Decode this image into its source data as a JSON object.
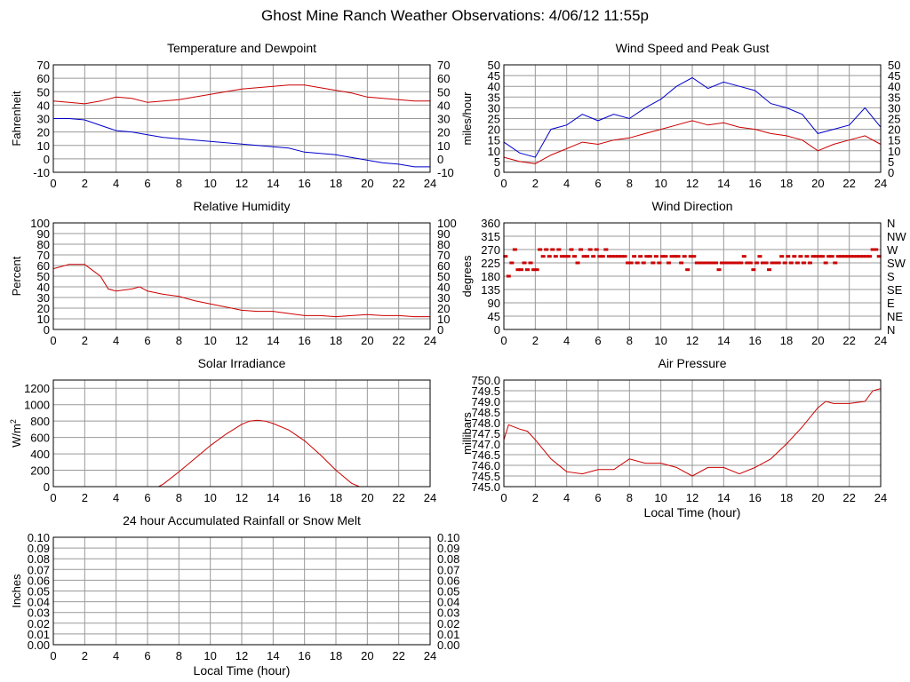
{
  "page_title": "Ghost Mine Ranch Weather Observations: 4/06/12 11:55p",
  "colors": {
    "temperature": "#cc0000",
    "dewpoint": "#0000cc",
    "grid": "#999999",
    "frame": "#000000"
  },
  "chart_data": [
    {
      "id": "temp",
      "type": "line",
      "title": "Temperature and Dewpoint",
      "xlabel": "",
      "ylabel": "Fahrenheit",
      "xlim": [
        0,
        24
      ],
      "ylim": [
        -10,
        70
      ],
      "xticks": [
        0,
        2,
        4,
        6,
        8,
        10,
        12,
        14,
        16,
        18,
        20,
        22,
        24
      ],
      "yticks": [
        -10,
        0,
        10,
        20,
        30,
        40,
        50,
        60,
        70
      ],
      "right_axis": true,
      "series": [
        {
          "name": "Temperature",
          "color": "#cc0000",
          "x": [
            0,
            1,
            2,
            3,
            4,
            5,
            6,
            7,
            8,
            9,
            10,
            11,
            12,
            13,
            14,
            15,
            16,
            17,
            18,
            19,
            20,
            21,
            22,
            23,
            24
          ],
          "y": [
            43,
            42,
            41,
            43,
            46,
            45,
            42,
            43,
            44,
            46,
            48,
            50,
            52,
            53,
            54,
            55,
            55,
            53,
            51,
            49,
            46,
            45,
            44,
            43,
            43
          ]
        },
        {
          "name": "Dewpoint",
          "color": "#0000cc",
          "x": [
            0,
            1,
            2,
            3,
            4,
            5,
            6,
            7,
            8,
            9,
            10,
            11,
            12,
            13,
            14,
            15,
            16,
            17,
            18,
            19,
            20,
            21,
            22,
            23,
            24
          ],
          "y": [
            30,
            30,
            29,
            25,
            21,
            20,
            18,
            16,
            15,
            14,
            13,
            12,
            11,
            10,
            9,
            8,
            5,
            4,
            3,
            1,
            -1,
            -3,
            -4,
            -6,
            -6
          ]
        }
      ]
    },
    {
      "id": "wind",
      "type": "line",
      "title": "Wind Speed and Peak Gust",
      "xlabel": "",
      "ylabel": "miles/hour",
      "xlim": [
        0,
        24
      ],
      "ylim": [
        0,
        50
      ],
      "xticks": [
        0,
        2,
        4,
        6,
        8,
        10,
        12,
        14,
        16,
        18,
        20,
        22,
        24
      ],
      "yticks": [
        0,
        5,
        10,
        15,
        20,
        25,
        30,
        35,
        40,
        45,
        50
      ],
      "right_axis": true,
      "series": [
        {
          "name": "Peak Gust",
          "color": "#0000cc",
          "x": [
            0,
            1,
            2,
            3,
            4,
            5,
            6,
            7,
            8,
            9,
            10,
            11,
            12,
            13,
            14,
            15,
            16,
            17,
            18,
            19,
            20,
            21,
            22,
            23,
            24
          ],
          "y": [
            14,
            9,
            7,
            20,
            22,
            27,
            24,
            27,
            25,
            30,
            34,
            40,
            44,
            39,
            42,
            40,
            38,
            32,
            30,
            27,
            18,
            20,
            22,
            30,
            21
          ]
        },
        {
          "name": "Wind Speed",
          "color": "#cc0000",
          "x": [
            0,
            1,
            2,
            3,
            4,
            5,
            6,
            7,
            8,
            9,
            10,
            11,
            12,
            13,
            14,
            15,
            16,
            17,
            18,
            19,
            20,
            21,
            22,
            23,
            24
          ],
          "y": [
            7,
            5,
            4,
            8,
            11,
            14,
            13,
            15,
            16,
            18,
            20,
            22,
            24,
            22,
            23,
            21,
            20,
            18,
            17,
            15,
            10,
            13,
            15,
            17,
            13
          ]
        }
      ]
    },
    {
      "id": "rh",
      "type": "line",
      "title": "Relative Humidity",
      "xlabel": "",
      "ylabel": "Percent",
      "xlim": [
        0,
        24
      ],
      "ylim": [
        0,
        100
      ],
      "xticks": [
        0,
        2,
        4,
        6,
        8,
        10,
        12,
        14,
        16,
        18,
        20,
        22,
        24
      ],
      "yticks": [
        0,
        10,
        20,
        30,
        40,
        50,
        60,
        70,
        80,
        90,
        100
      ],
      "right_axis": true,
      "series": [
        {
          "name": "Humidity",
          "color": "#cc0000",
          "x": [
            0,
            1,
            2,
            3,
            3.5,
            4,
            5,
            5.5,
            6,
            7,
            8,
            9,
            10,
            11,
            12,
            13,
            14,
            15,
            16,
            17,
            18,
            19,
            20,
            21,
            22,
            23,
            24
          ],
          "y": [
            57,
            61,
            61,
            50,
            38,
            36,
            38,
            40,
            36,
            33,
            31,
            27,
            24,
            21,
            18,
            17,
            17,
            15,
            13,
            13,
            12,
            13,
            14,
            13,
            13,
            12,
            12
          ]
        }
      ]
    },
    {
      "id": "wdir",
      "type": "scatter",
      "title": "Wind Direction",
      "xlabel": "",
      "ylabel": "degrees",
      "xlim": [
        0,
        24
      ],
      "ylim": [
        0,
        360
      ],
      "xticks": [
        0,
        2,
        4,
        6,
        8,
        10,
        12,
        14,
        16,
        18,
        20,
        22,
        24
      ],
      "yticks": [
        0,
        45,
        90,
        135,
        180,
        225,
        270,
        315,
        360
      ],
      "right_tick_labels": [
        "N",
        "NE",
        "E",
        "SE",
        "S",
        "SW",
        "W",
        "NW",
        "N"
      ],
      "series": [
        {
          "name": "Direction",
          "color": "#cc0000",
          "x": [
            0.1,
            0.3,
            0.5,
            0.7,
            0.9,
            1.1,
            1.3,
            1.5,
            1.7,
            1.9,
            2.1,
            2.3,
            2.5,
            2.7,
            2.9,
            3.1,
            3.3,
            3.5,
            3.7,
            3.9,
            4.1,
            4.3,
            4.5,
            4.7,
            4.9,
            5.1,
            5.3,
            5.5,
            5.7,
            5.9,
            6.1,
            6.3,
            6.5,
            6.7,
            6.9,
            7.1,
            7.3,
            7.5,
            7.7,
            7.9,
            8.1,
            8.3,
            8.5,
            8.7,
            8.9,
            9.1,
            9.3,
            9.5,
            9.7,
            9.9,
            10.1,
            10.3,
            10.5,
            10.7,
            10.9,
            11.1,
            11.3,
            11.5,
            11.7,
            11.9,
            12.1,
            12.3,
            12.5,
            12.7,
            12.9,
            13.1,
            13.3,
            13.5,
            13.7,
            13.9,
            14.1,
            14.3,
            14.5,
            14.7,
            14.9,
            15.1,
            15.3,
            15.5,
            15.7,
            15.9,
            16.1,
            16.3,
            16.5,
            16.7,
            16.9,
            17.1,
            17.3,
            17.5,
            17.7,
            17.9,
            18.1,
            18.3,
            18.5,
            18.7,
            18.9,
            19.1,
            19.3,
            19.5,
            19.7,
            19.9,
            20.1,
            20.3,
            20.5,
            20.7,
            20.9,
            21.1,
            21.3,
            21.5,
            21.7,
            21.9,
            22.1,
            22.3,
            22.5,
            22.7,
            22.9,
            23.1,
            23.3,
            23.5,
            23.7,
            23.9
          ],
          "y": [
            247,
            180,
            225,
            270,
            202,
            202,
            225,
            202,
            225,
            202,
            202,
            270,
            247,
            270,
            247,
            270,
            247,
            270,
            247,
            247,
            247,
            270,
            247,
            225,
            270,
            247,
            247,
            270,
            247,
            270,
            247,
            247,
            270,
            247,
            247,
            247,
            247,
            247,
            247,
            225,
            225,
            247,
            225,
            247,
            225,
            247,
            247,
            225,
            247,
            225,
            247,
            247,
            225,
            247,
            247,
            247,
            225,
            247,
            202,
            247,
            247,
            225,
            225,
            225,
            225,
            225,
            225,
            225,
            202,
            225,
            225,
            225,
            225,
            225,
            225,
            225,
            247,
            225,
            225,
            202,
            225,
            247,
            225,
            225,
            202,
            225,
            225,
            225,
            247,
            225,
            247,
            225,
            247,
            225,
            247,
            225,
            247,
            225,
            247,
            247,
            247,
            247,
            225,
            247,
            247,
            225,
            247,
            247,
            247,
            247,
            247,
            247,
            247,
            247,
            247,
            247,
            247,
            270,
            270,
            247
          ]
        }
      ]
    },
    {
      "id": "solar",
      "type": "line",
      "title": "Solar Irradiance",
      "xlabel": "",
      "ylabel": "W/m",
      "ylabel_sup": "2",
      "xlim": [
        0,
        24
      ],
      "ylim": [
        0,
        1300
      ],
      "xticks": [
        0,
        2,
        4,
        6,
        8,
        10,
        12,
        14,
        16,
        18,
        20,
        22,
        24
      ],
      "yticks": [
        0,
        200,
        400,
        600,
        800,
        1000,
        1200
      ],
      "right_axis": false,
      "series": [
        {
          "name": "Irradiance",
          "color": "#cc0000",
          "x": [
            0,
            6,
            6.7,
            7,
            8,
            9,
            10,
            11,
            12,
            12.5,
            13,
            13.5,
            14,
            15,
            16,
            17,
            18,
            19,
            19.5,
            20,
            24
          ],
          "y": [
            0,
            0,
            0,
            30,
            180,
            340,
            500,
            640,
            760,
            800,
            810,
            800,
            770,
            690,
            560,
            390,
            200,
            40,
            0,
            0,
            0
          ]
        }
      ]
    },
    {
      "id": "pressure",
      "type": "line",
      "title": "Air Pressure",
      "xlabel": "Local Time (hour)",
      "ylabel": "millibars",
      "xlim": [
        0,
        24
      ],
      "ylim": [
        745.0,
        750.0
      ],
      "xticks": [
        0,
        2,
        4,
        6,
        8,
        10,
        12,
        14,
        16,
        18,
        20,
        22,
        24
      ],
      "yticks": [
        745.0,
        745.5,
        746.0,
        746.5,
        747.0,
        747.5,
        748.0,
        748.5,
        749.0,
        749.5,
        750.0
      ],
      "right_axis": false,
      "series": [
        {
          "name": "Pressure",
          "color": "#cc0000",
          "x": [
            0,
            0.3,
            1,
            1.5,
            2,
            3,
            4,
            5,
            6,
            7,
            8,
            9,
            10,
            11,
            12,
            13,
            14,
            15,
            16,
            17,
            18,
            19,
            20,
            20.5,
            21,
            22,
            23,
            23.5,
            24
          ],
          "y": [
            747.2,
            747.9,
            747.7,
            747.6,
            747.2,
            746.3,
            745.7,
            745.6,
            745.8,
            745.8,
            746.3,
            746.1,
            746.1,
            745.9,
            745.5,
            745.9,
            745.9,
            745.6,
            745.9,
            746.3,
            747.0,
            747.8,
            748.7,
            749.0,
            748.9,
            748.9,
            749.0,
            749.5,
            749.6
          ]
        }
      ]
    },
    {
      "id": "rain",
      "type": "line",
      "title": "24 hour Accumulated Rainfall or Snow Melt",
      "xlabel": "Local Time (hour)",
      "ylabel": "Inches",
      "xlim": [
        0,
        24
      ],
      "ylim": [
        0,
        0.1
      ],
      "xticks": [
        0,
        2,
        4,
        6,
        8,
        10,
        12,
        14,
        16,
        18,
        20,
        22,
        24
      ],
      "yticks": [
        0.0,
        0.01,
        0.02,
        0.03,
        0.04,
        0.05,
        0.06,
        0.07,
        0.08,
        0.09,
        0.1
      ],
      "right_axis": true,
      "series": [
        {
          "name": "Rainfall",
          "color": "#cc0000",
          "x": [
            0,
            24
          ],
          "y": [
            0,
            0
          ]
        }
      ]
    }
  ]
}
